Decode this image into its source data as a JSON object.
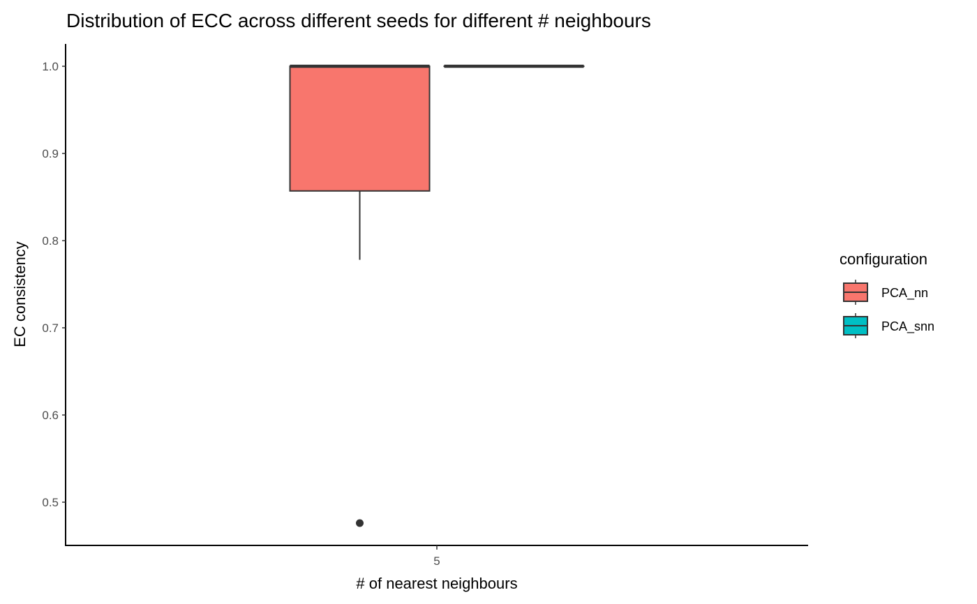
{
  "chart_data": {
    "type": "boxplot",
    "title": "Distribution of ECC across different seeds for different # neighbours",
    "xlabel": "# of nearest neighbours",
    "ylabel": "EC consistency",
    "categories": [
      "5"
    ],
    "ylim": [
      0.45,
      1.025
    ],
    "yticks": [
      0.5,
      0.6,
      0.7,
      0.8,
      0.9,
      1.0
    ],
    "ytick_labels": [
      "0.5",
      "0.6",
      "0.7",
      "0.8",
      "0.9",
      "1.0"
    ],
    "grid": false,
    "legend": {
      "title": "configuration",
      "placement": "right",
      "entries": [
        "PCA_nn",
        "PCA_snn"
      ]
    },
    "series": [
      {
        "name": "PCA_nn",
        "color": "#F8766D",
        "category": "5",
        "lower_whisker": 0.778,
        "q1": 0.857,
        "median": 1.0,
        "q3": 1.0,
        "upper_whisker": 1.0,
        "outliers": [
          0.476
        ]
      },
      {
        "name": "PCA_snn",
        "color": "#00BFC4",
        "category": "5",
        "lower_whisker": 1.0,
        "q1": 1.0,
        "median": 1.0,
        "q3": 1.0,
        "upper_whisker": 1.0,
        "outliers": []
      }
    ]
  }
}
